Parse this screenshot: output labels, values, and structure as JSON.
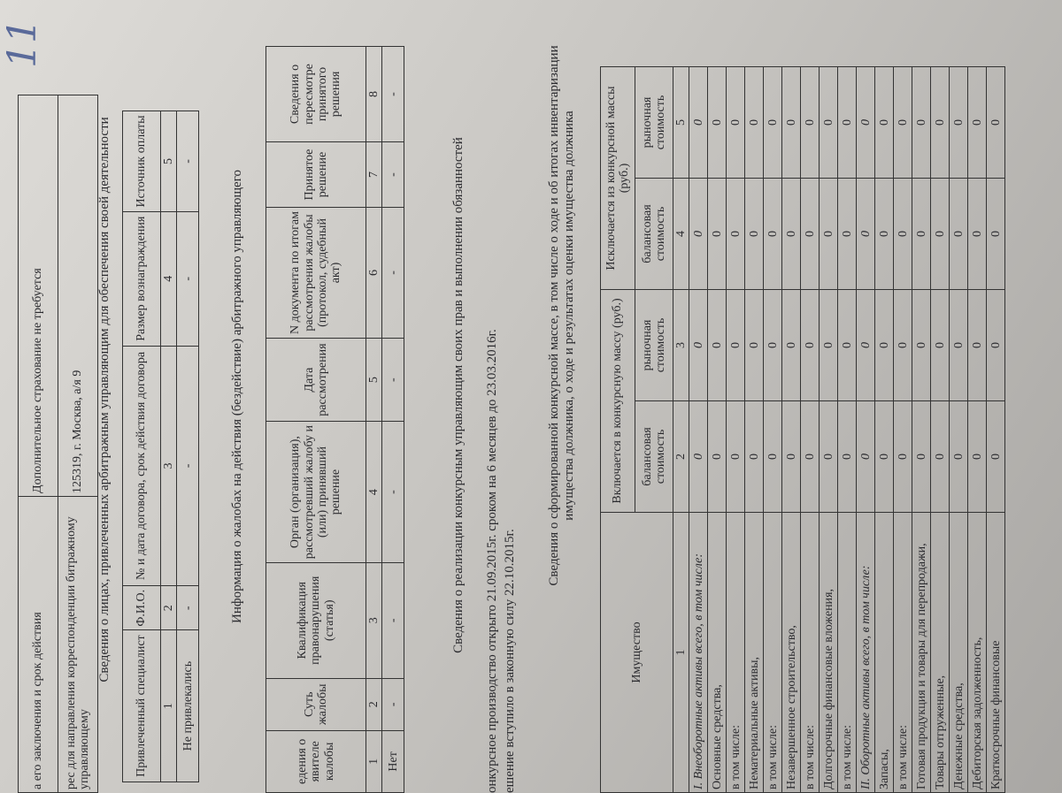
{
  "handwritten_mark": "11",
  "top_table": {
    "rows": [
      [
        "а его заключения и срок действия",
        "Дополнительное страхование не требуется"
      ],
      [
        "рес для направления корреспонденции битражному управляющему",
        "125319, г. Москва, а/я 9"
      ]
    ]
  },
  "persons": {
    "title": "Сведения о лицах, привлеченных арбитражным управляющим для обеспечения своей деятельности",
    "headers": [
      "Привлеченный специалист",
      "Ф.И.О.",
      "№ и дата договора, срок действия договора",
      "Размер вознаграждения",
      "Источник оплаты"
    ],
    "numbers": [
      "1",
      "2",
      "3",
      "4",
      "5"
    ],
    "rows": [
      [
        "Не привлекались",
        "-",
        "-",
        "-",
        "-"
      ]
    ]
  },
  "complaints": {
    "title": "Информация о жалобах на действия (бездействие) арбитражного управляющего",
    "headers": [
      "едения о явителе калобы",
      "Суть жалобы",
      "Квалификация правонарушения (статья)",
      "Орган (организация), рассмотревший жалобу и (или) принявший решение",
      "Дата рассмотрения",
      "N документа по итогам рассмотрения жалобы (протокол, судебный акт)",
      "Принятое решение",
      "Сведения о пересмотре принятого решения"
    ],
    "numbers": [
      "1",
      "2",
      "3",
      "4",
      "5",
      "6",
      "7",
      "8"
    ],
    "rows": [
      [
        "Нет",
        "-",
        "-",
        "-",
        "-",
        "-",
        "-",
        "-"
      ]
    ]
  },
  "rights": {
    "title": "Сведения о реализации конкурсным управляющим своих прав и выполнении обязанностей",
    "lines": [
      "онкурсное производство открыто 21.09.2015г. сроком на 6 месяцев до 23.03.2016г.",
      "ешение вступило в законную силу 22.10.2015г."
    ]
  },
  "estate": {
    "title": "Сведения о сформированной конкурсной массе, в том числе о ходе и об итогах инвентаризации имущества должника, о ходе и результатах оценки имущества должника",
    "header_property": "Имущество",
    "header_included": "Включается в конкурсную массу (руб.)",
    "header_excluded": "Исключается из конкурсной массы (руб.)",
    "subheaders": [
      "балансовая стоимость",
      "рыночная стоимость",
      "балансовая стоимость",
      "рыночная стоимость"
    ],
    "numbers": [
      "1",
      "2",
      "3",
      "4",
      "5"
    ],
    "rows": [
      {
        "label": "I. Внеоборотные активы всего, в том числе:",
        "values": [
          0,
          0,
          0,
          0
        ]
      },
      {
        "label": "Основные средства,",
        "values": [
          0,
          0,
          0,
          0
        ]
      },
      {
        "label": "в том числе:",
        "values": [
          0,
          0,
          0,
          0
        ]
      },
      {
        "label": "Нематериальные активы,",
        "values": [
          0,
          0,
          0,
          0
        ]
      },
      {
        "label": "в том числе:",
        "values": [
          0,
          0,
          0,
          0
        ]
      },
      {
        "label": "Незавершенное строительство,",
        "values": [
          0,
          0,
          0,
          0
        ]
      },
      {
        "label": "в том числе:",
        "values": [
          0,
          0,
          0,
          0
        ]
      },
      {
        "label": "Долгосрочные финансовые вложения,",
        "values": [
          0,
          0,
          0,
          0
        ]
      },
      {
        "label": "в том числе:",
        "values": [
          0,
          0,
          0,
          0
        ]
      },
      {
        "label": "II. Оборотные активы всего, в том числе:",
        "values": [
          0,
          0,
          0,
          0
        ]
      },
      {
        "label": "Запасы,",
        "values": [
          0,
          0,
          0,
          0
        ]
      },
      {
        "label": "в том числе:",
        "values": [
          0,
          0,
          0,
          0
        ]
      },
      {
        "label": "Готовая продукция и товары для перепродажи,",
        "values": [
          0,
          0,
          0,
          0
        ]
      },
      {
        "label": "Товары отгруженные,",
        "values": [
          0,
          0,
          0,
          0
        ]
      },
      {
        "label": "Денежные средства,",
        "values": [
          0,
          0,
          0,
          0
        ]
      },
      {
        "label": "Дебиторская задолженность,",
        "values": [
          0,
          0,
          0,
          0
        ]
      },
      {
        "label": "Краткосрочные финансовые",
        "values": [
          0,
          0,
          0,
          0
        ]
      }
    ]
  }
}
